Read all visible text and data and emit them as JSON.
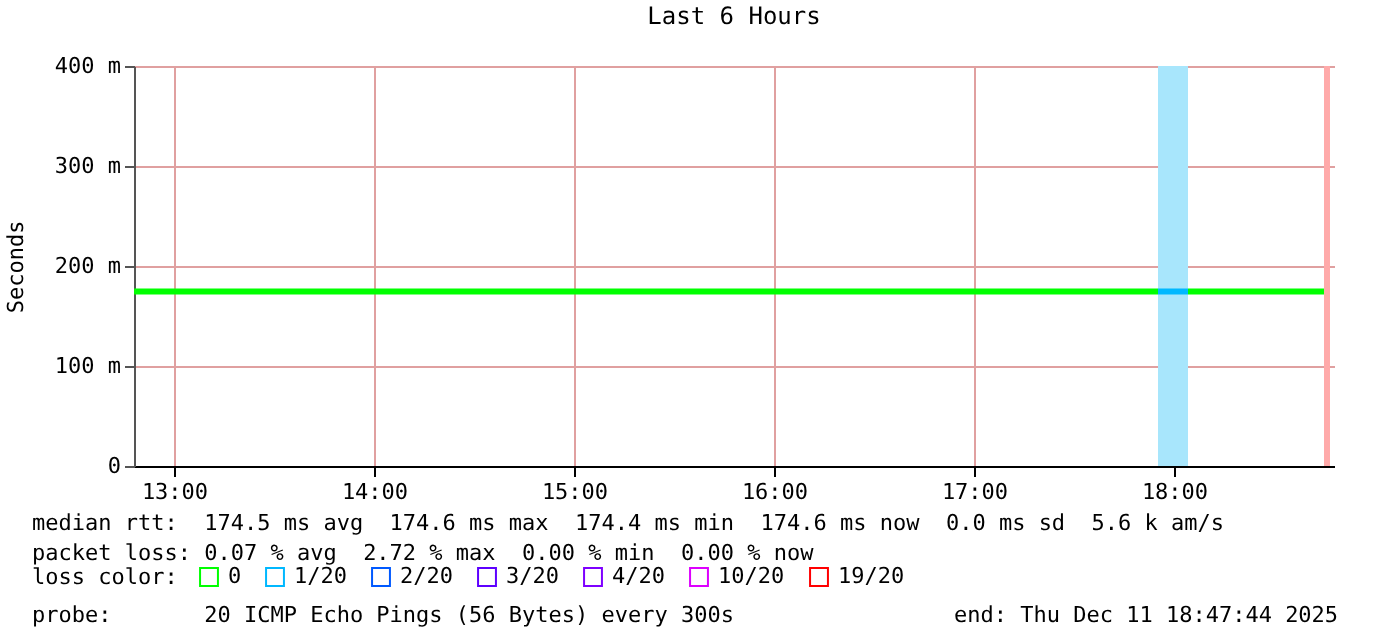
{
  "chart_data": {
    "type": "line",
    "title": "Last 6 Hours",
    "ylabel": "Seconds",
    "x": [
      12.8,
      13,
      13.5,
      14,
      14.5,
      15,
      15.5,
      16,
      16.5,
      17,
      17.5,
      17.92,
      18,
      18.07,
      18.5,
      18.75
    ],
    "series": [
      {
        "name": "0",
        "color": "#00ff00",
        "values": [
          174.5,
          174.5,
          174.5,
          174.5,
          174.5,
          174.5,
          174.5,
          174.5,
          174.5,
          174.5,
          174.5,
          174.5,
          null,
          174.5,
          174.5,
          174.5
        ]
      },
      {
        "name": "1/20",
        "color": "#00b8ff",
        "x": [
          17.92,
          18.07
        ],
        "values": [
          174.5,
          174.5
        ]
      },
      {
        "name": "2/20",
        "color": "#0059ff",
        "values": [
          null,
          null,
          null,
          null,
          null,
          null,
          null,
          null,
          null,
          null,
          null,
          null,
          null,
          null,
          null,
          null
        ]
      },
      {
        "name": "3/20",
        "color": "#5e00ff",
        "values": [
          null,
          null,
          null,
          null,
          null,
          null,
          null,
          null,
          null,
          null,
          null,
          null,
          null,
          null,
          null,
          null
        ]
      },
      {
        "name": "4/20",
        "color": "#7e00ff",
        "values": [
          null,
          null,
          null,
          null,
          null,
          null,
          null,
          null,
          null,
          null,
          null,
          null,
          null,
          null,
          null,
          null
        ]
      },
      {
        "name": "10/20",
        "color": "#dd00ff",
        "values": [
          null,
          null,
          null,
          null,
          null,
          null,
          null,
          null,
          null,
          null,
          null,
          null,
          null,
          null,
          null,
          null
        ]
      },
      {
        "name": "19/20",
        "color": "#ff0000",
        "values": [
          null,
          null,
          null,
          null,
          null,
          null,
          null,
          null,
          null,
          null,
          null,
          null,
          null,
          null,
          null,
          null
        ]
      }
    ],
    "bands": [
      {
        "axis": "x",
        "from": 17.92,
        "to": 18.07,
        "color": "#a8e6fc"
      },
      {
        "axis": "x",
        "from": 18.75,
        "to": 18.78,
        "color": "#ffaaaa"
      }
    ],
    "xlim": [
      12.8,
      18.8
    ],
    "xticks": [
      {
        "value": 13,
        "label": "13:00"
      },
      {
        "value": 14,
        "label": "14:00"
      },
      {
        "value": 15,
        "label": "15:00"
      },
      {
        "value": 16,
        "label": "16:00"
      },
      {
        "value": 17,
        "label": "17:00"
      },
      {
        "value": 18,
        "label": "18:00"
      }
    ],
    "ylim": [
      0,
      400
    ],
    "yticks": [
      0,
      {
        "value": 100,
        "label": "100 m"
      },
      {
        "value": 200,
        "label": "200 m"
      },
      {
        "value": 300,
        "label": "300 m"
      },
      {
        "value": 400,
        "label": "400 m"
      }
    ],
    "grid": true,
    "legend": "bottom",
    "legend_title": "loss color:",
    "marker": "none",
    "line_style": "solid",
    "annotations": [
      "median rtt:  174.5 ms avg  174.6 ms max  174.4 ms min  174.6 ms now  0.0 ms sd  5.6 k am/s",
      "packet loss: 0.07 % avg  2.72 % max  0.00 % min  0.00 % now",
      "probe:       20 ICMP Echo Pings (56 Bytes) every 300s",
      "end: Thu Dec 11 18:47:44 2025"
    ]
  }
}
